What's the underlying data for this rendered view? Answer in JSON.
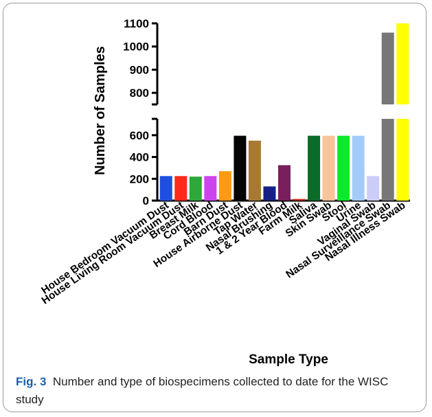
{
  "chart_data": {
    "type": "bar",
    "title": "",
    "xlabel": "Sample Type",
    "ylabel": "Number of Samples",
    "y_break": {
      "lower": [
        0,
        750
      ],
      "upper": [
        750,
        1100
      ]
    },
    "yticks_lower": [
      0,
      200,
      400,
      600
    ],
    "yticks_upper": [
      800,
      900,
      1000,
      1100
    ],
    "categories": [
      "House Bedroom Vacuum Dust",
      "House Living Room Vacuum Dust",
      "Breast Milk",
      "Cord Blood",
      "Barn Dust",
      "House Airborne Dust",
      "Tap Water",
      "Nasal Brushing",
      "1 & 2 Year Blood",
      "Farm Milk",
      "Saliva",
      "Skin Swab",
      "Stool",
      "Urine",
      "Vaginal Swab",
      "Nasal Surveillance Swab",
      "Nasal Illness Swab"
    ],
    "values": [
      225,
      225,
      220,
      225,
      270,
      595,
      550,
      130,
      325,
      15,
      595,
      595,
      595,
      595,
      225,
      1060,
      1100
    ],
    "colors": [
      "#1f4fe0",
      "#ff2a1a",
      "#2fa83a",
      "#cc44ee",
      "#ff9a12",
      "#050505",
      "#a87933",
      "#1a1f88",
      "#7a1f5e",
      "#c9271e",
      "#0b6b28",
      "#f8c49a",
      "#0ee82a",
      "#a3cbf8",
      "#ccccf8",
      "#777777",
      "#ffff00"
    ]
  },
  "caption": {
    "label": "Fig. 3",
    "text": "Number and type of biospecimens collected to date for the WISC study"
  }
}
